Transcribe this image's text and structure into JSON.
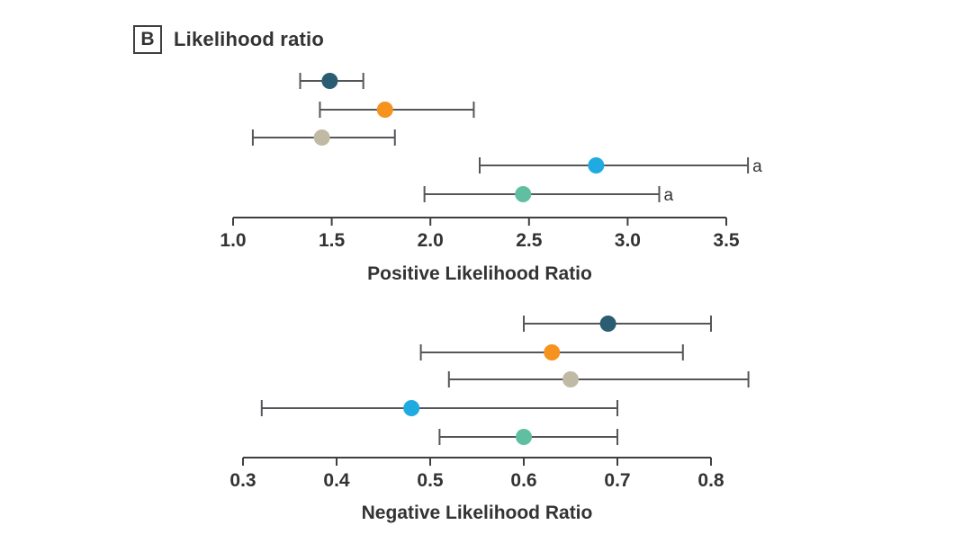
{
  "figure": {
    "panel_label": "B",
    "title": "Likelihood ratio"
  },
  "colors": {
    "navy": "#2a5d71",
    "orange": "#f6921e",
    "tan": "#c0b9a4",
    "cyan": "#1fabe2",
    "teal": "#5fbfa0",
    "whisker": "#55565a",
    "axis": "#3f3f3f",
    "text": "#333333"
  },
  "chart_data": [
    {
      "type": "scatter",
      "subtype": "forest-interval",
      "title": "Positive Likelihood Ratio",
      "xlabel": "Positive Likelihood Ratio",
      "xlim": [
        1.0,
        3.5
      ],
      "x_ticks": [
        "1.0",
        "1.5",
        "2.0",
        "2.5",
        "3.0",
        "3.5"
      ],
      "x_tick_values": [
        1.0,
        1.5,
        2.0,
        2.5,
        3.0,
        3.5
      ],
      "grid": false,
      "legend": "none",
      "rows": [
        {
          "series": "navy",
          "point": 1.49,
          "ci_low": 1.34,
          "ci_high": 1.66,
          "note": ""
        },
        {
          "series": "orange",
          "point": 1.77,
          "ci_low": 1.44,
          "ci_high": 2.22,
          "note": ""
        },
        {
          "series": "tan",
          "point": 1.45,
          "ci_low": 1.1,
          "ci_high": 1.82,
          "note": ""
        },
        {
          "series": "cyan",
          "point": 2.84,
          "ci_low": 2.25,
          "ci_high": 3.61,
          "note": "a"
        },
        {
          "series": "teal",
          "point": 2.47,
          "ci_low": 1.97,
          "ci_high": 3.16,
          "note": "a"
        }
      ]
    },
    {
      "type": "scatter",
      "subtype": "forest-interval",
      "title": "Negative Likelihood Ratio",
      "xlabel": "Negative Likelihood Ratio",
      "xlim": [
        0.3,
        0.8
      ],
      "x_ticks": [
        "0.3",
        "0.4",
        "0.5",
        "0.6",
        "0.7",
        "0.8"
      ],
      "x_tick_values": [
        0.3,
        0.4,
        0.5,
        0.6,
        0.7,
        0.8
      ],
      "grid": false,
      "legend": "none",
      "rows": [
        {
          "series": "navy",
          "point": 0.69,
          "ci_low": 0.6,
          "ci_high": 0.8,
          "note": ""
        },
        {
          "series": "orange",
          "point": 0.63,
          "ci_low": 0.49,
          "ci_high": 0.77,
          "note": ""
        },
        {
          "series": "tan",
          "point": 0.65,
          "ci_low": 0.52,
          "ci_high": 0.84,
          "note": ""
        },
        {
          "series": "cyan",
          "point": 0.48,
          "ci_low": 0.32,
          "ci_high": 0.7,
          "note": ""
        },
        {
          "series": "teal",
          "point": 0.6,
          "ci_low": 0.51,
          "ci_high": 0.7,
          "note": ""
        }
      ]
    }
  ]
}
